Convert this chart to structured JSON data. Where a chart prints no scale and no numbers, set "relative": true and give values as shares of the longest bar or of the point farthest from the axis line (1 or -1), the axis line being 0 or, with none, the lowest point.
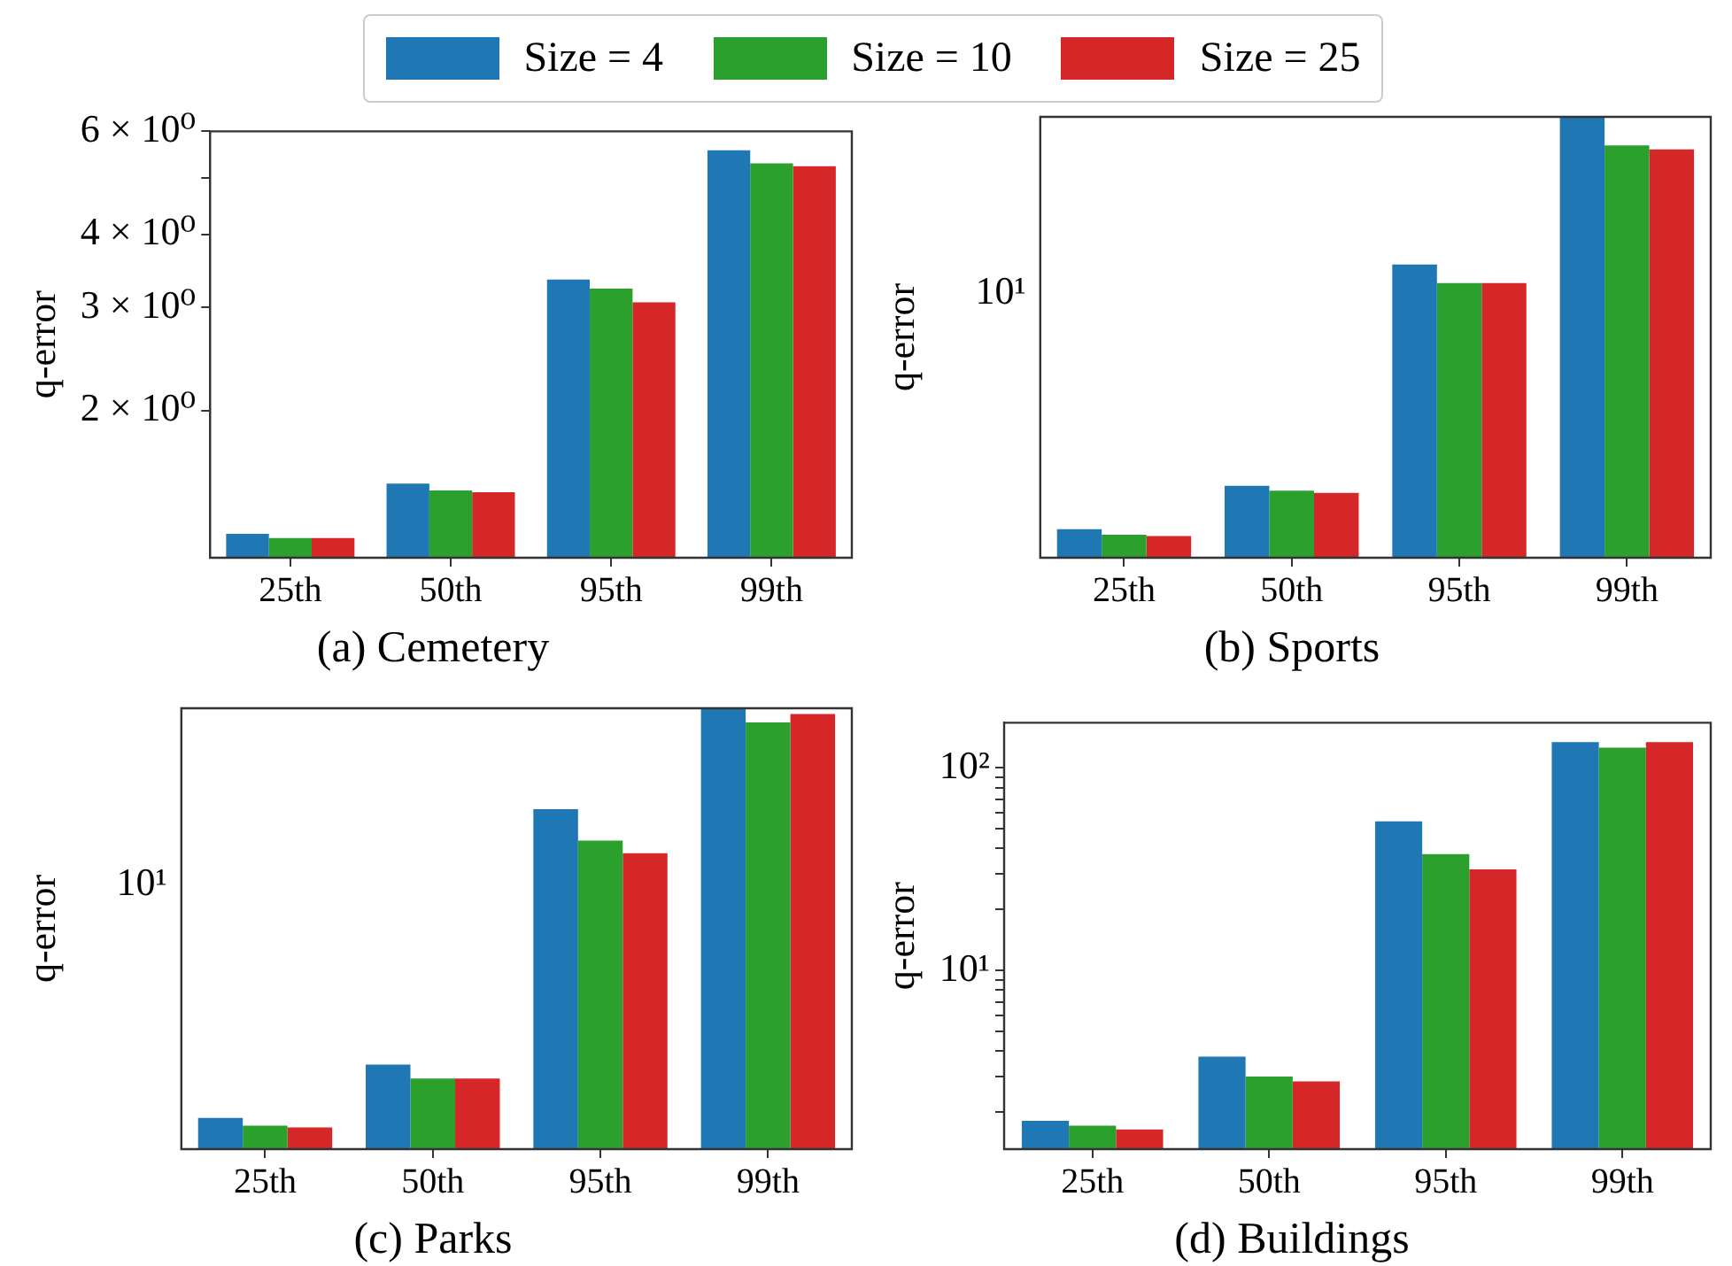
{
  "chart_data": [
    {
      "type": "bar",
      "title": "(a) Cemetery",
      "ylabel": "q-error",
      "categories": [
        "25th",
        "50th",
        "95th",
        "99th"
      ],
      "log": true,
      "legend": "top",
      "ylim": [
        1.12,
        6
      ],
      "yticks": [
        {
          "value": 2,
          "label": "2 × 10⁰"
        },
        {
          "value": 3,
          "label": "3 × 10⁰"
        },
        {
          "value": 4,
          "label": "4 × 10⁰"
        },
        {
          "value": 5,
          "label": null
        },
        {
          "value": 6,
          "label": "6 × 10⁰"
        }
      ],
      "series": [
        {
          "name": "Size = 4",
          "color": "#1f77b4",
          "values": [
            1.23,
            1.5,
            3.35,
            5.57
          ]
        },
        {
          "name": "Size = 10",
          "color": "#2ca02c",
          "values": [
            1.21,
            1.46,
            3.23,
            5.29
          ]
        },
        {
          "name": "Size = 25",
          "color": "#d62728",
          "values": [
            1.21,
            1.45,
            3.06,
            5.23
          ]
        }
      ]
    },
    {
      "type": "bar",
      "title": "(b) Sports",
      "ylabel": "q-error",
      "categories": [
        "25th",
        "50th",
        "95th",
        "99th"
      ],
      "relative": true,
      "annotations": [
        "10¹"
      ],
      "series": [
        {
          "color": "#1f77b4",
          "values": [
            0.065,
            0.163,
            0.665,
            1
          ]
        },
        {
          "color": "#2ca02c",
          "values": [
            0.052,
            0.152,
            0.623,
            0.935
          ]
        },
        {
          "color": "#d62728",
          "values": [
            0.049,
            0.147,
            0.623,
            0.926
          ]
        }
      ]
    },
    {
      "type": "bar",
      "title": "(c) Parks",
      "ylabel": "q-error",
      "categories": [
        "25th",
        "50th",
        "95th",
        "99th"
      ],
      "relative": true,
      "annotations": [
        "10¹"
      ],
      "series": [
        {
          "color": "#1f77b4",
          "values": [
            0.071,
            0.192,
            0.771,
            1
          ]
        },
        {
          "color": "#2ca02c",
          "values": [
            0.053,
            0.16,
            0.7,
            0.968
          ]
        },
        {
          "color": "#d62728",
          "values": [
            0.049,
            0.16,
            0.671,
            0.987
          ]
        }
      ]
    },
    {
      "type": "bar",
      "title": "(d) Buildings",
      "ylabel": "q-error",
      "categories": [
        "25th",
        "50th",
        "95th",
        "99th"
      ],
      "log": true,
      "ylim": [
        1.31,
        167
      ],
      "yticks": [
        {
          "value": 2,
          "label": null
        },
        {
          "value": 3,
          "label": null
        },
        {
          "value": 4,
          "label": null
        },
        {
          "value": 5,
          "label": null
        },
        {
          "value": 6,
          "label": null
        },
        {
          "value": 7,
          "label": null
        },
        {
          "value": 8,
          "label": null
        },
        {
          "value": 9,
          "label": null
        },
        {
          "value": 10,
          "label": "10¹"
        },
        {
          "value": 20,
          "label": null
        },
        {
          "value": 30,
          "label": null
        },
        {
          "value": 40,
          "label": null
        },
        {
          "value": 50,
          "label": null
        },
        {
          "value": 60,
          "label": null
        },
        {
          "value": 70,
          "label": null
        },
        {
          "value": 80,
          "label": null
        },
        {
          "value": 90,
          "label": null
        },
        {
          "value": 100,
          "label": "10²"
        }
      ],
      "series": [
        {
          "color": "#1f77b4",
          "values": [
            1.81,
            3.75,
            54.5,
            134
          ]
        },
        {
          "color": "#2ca02c",
          "values": [
            1.71,
            2.99,
            37.5,
            126
          ]
        },
        {
          "color": "#d62728",
          "values": [
            1.64,
            2.83,
            31.5,
            134
          ]
        }
      ]
    }
  ]
}
